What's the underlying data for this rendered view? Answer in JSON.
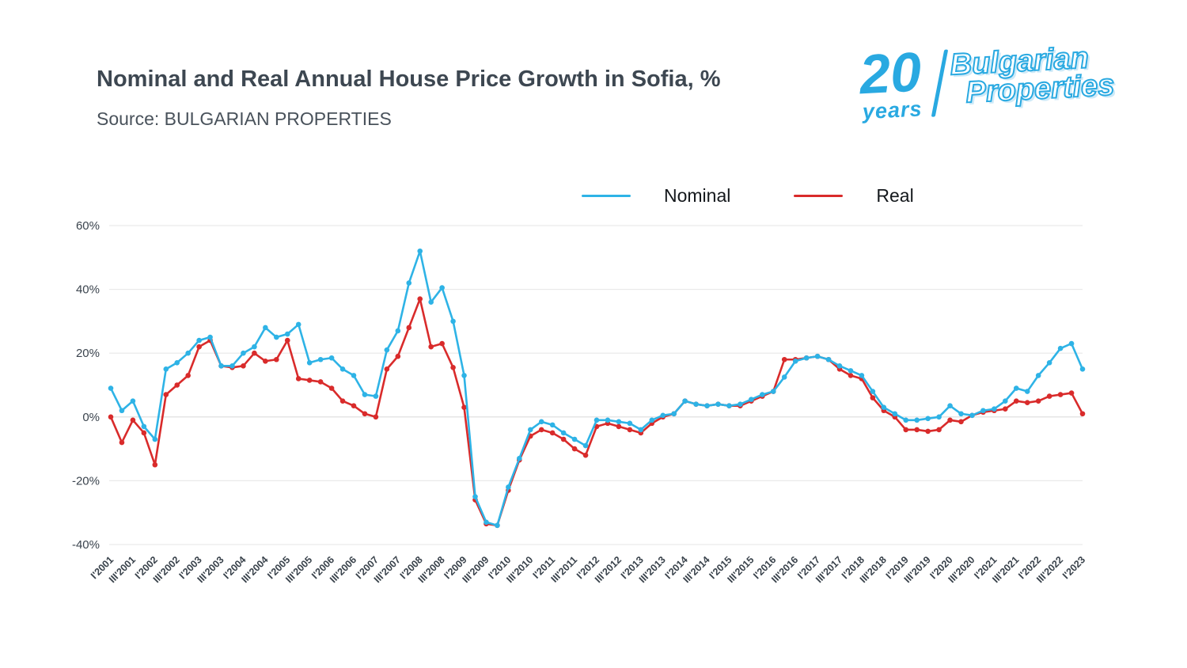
{
  "header": {
    "title": "Nominal and Real Annual House Price Growth in Sofia, %",
    "subtitle": "Source: BULGARIAN PROPERTIES"
  },
  "logo": {
    "number": "20",
    "years": "years",
    "name_line1": "Bulgarian",
    "name_line2": "Properties",
    "color": "#29a9e1"
  },
  "chart_data": {
    "type": "line",
    "title": "Nominal and Real Annual House Price Growth in Sofia, %",
    "source": "BULGARIAN PROPERTIES",
    "legend_position": "top",
    "grid": "horizontal",
    "ylim": [
      -40,
      60
    ],
    "y_ticks": [
      60,
      40,
      20,
      0,
      -20,
      -40
    ],
    "y_tick_suffix": "%",
    "x_tick_every": 2,
    "x": [
      "I'2001",
      "II'2001",
      "III'2001",
      "IV'2001",
      "I'2002",
      "II'2002",
      "III'2002",
      "IV'2002",
      "I'2003",
      "II'2003",
      "III'2003",
      "IV'2003",
      "I'2004",
      "II'2004",
      "III'2004",
      "IV'2004",
      "I'2005",
      "II'2005",
      "III'2005",
      "IV'2005",
      "I'2006",
      "II'2006",
      "III'2006",
      "IV'2006",
      "I'2007",
      "II'2007",
      "III'2007",
      "IV'2007",
      "I'2008",
      "II'2008",
      "III'2008",
      "IV'2008",
      "I'2009",
      "II'2009",
      "III'2009",
      "IV'2009",
      "I'2010",
      "II'2010",
      "III'2010",
      "IV'2010",
      "I'2011",
      "II'2011",
      "III'2011",
      "IV'2011",
      "I'2012",
      "II'2012",
      "III'2012",
      "IV'2012",
      "I'2013",
      "II'2013",
      "III'2013",
      "IV'2013",
      "I'2014",
      "II'2014",
      "III'2014",
      "IV'2014",
      "I'2015",
      "II'2015",
      "III'2015",
      "IV'2015",
      "I'2016",
      "II'2016",
      "III'2016",
      "IV'2016",
      "I'2017",
      "II'2017",
      "III'2017",
      "IV'2017",
      "I'2018",
      "II'2018",
      "III'2018",
      "IV'2018",
      "I'2019",
      "II'2019",
      "III'2019",
      "IV'2019",
      "I'2020",
      "II'2020",
      "III'2020",
      "IV'2020",
      "I'2021",
      "II'2021",
      "III'2021",
      "IV'2021",
      "I'2022",
      "II'2022",
      "III'2022",
      "IV'2022",
      "I'2023"
    ],
    "series": [
      {
        "name": "Nominal",
        "color": "#2eb3e6",
        "values": [
          9,
          2,
          5,
          -3,
          -7,
          15,
          17,
          20,
          24,
          25,
          16,
          16,
          20,
          22,
          28,
          25,
          26,
          29,
          17,
          18,
          18.5,
          15,
          13,
          7,
          6.5,
          21,
          27,
          42,
          52,
          36,
          40.5,
          30,
          13,
          -25,
          -33,
          -34,
          -22,
          -13,
          -4,
          -1.5,
          -2.5,
          -5,
          -7,
          -9,
          -1,
          -1,
          -1.5,
          -2,
          -4,
          -1,
          0.5,
          1,
          5,
          4,
          3.5,
          4,
          3.5,
          4,
          5.5,
          7,
          8,
          12.5,
          17.5,
          18.5,
          19,
          18,
          16,
          14.5,
          13,
          8,
          3,
          1,
          -1,
          -1,
          -0.5,
          0,
          3.5,
          1,
          0.5,
          2,
          2.5,
          5,
          9,
          8,
          13,
          17,
          21.5,
          23,
          15
        ]
      },
      {
        "name": "Real",
        "color": "#d92b2b",
        "values": [
          0,
          -8,
          -1,
          -5,
          -15,
          7,
          10,
          13,
          22,
          24,
          16,
          15.5,
          16,
          20,
          17.5,
          18,
          24,
          12,
          11.5,
          11,
          9,
          5,
          3.5,
          1,
          0,
          15,
          19,
          28,
          37,
          22,
          23,
          15.5,
          3,
          -26,
          -33.5,
          -34,
          -23,
          -13.5,
          -6,
          -4,
          -5,
          -7,
          -10,
          -12,
          -3,
          -2,
          -3,
          -4,
          -5,
          -2,
          0,
          1,
          5,
          4,
          3.5,
          4,
          3.5,
          3.5,
          5,
          6.5,
          8,
          18,
          18,
          18.5,
          19,
          18,
          15,
          13,
          12,
          6,
          2,
          0,
          -4,
          -4,
          -4.5,
          -4,
          -1,
          -1.5,
          0.5,
          1.5,
          2,
          2.5,
          5,
          4.5,
          5,
          6.5,
          7,
          7.5,
          1
        ]
      }
    ]
  }
}
